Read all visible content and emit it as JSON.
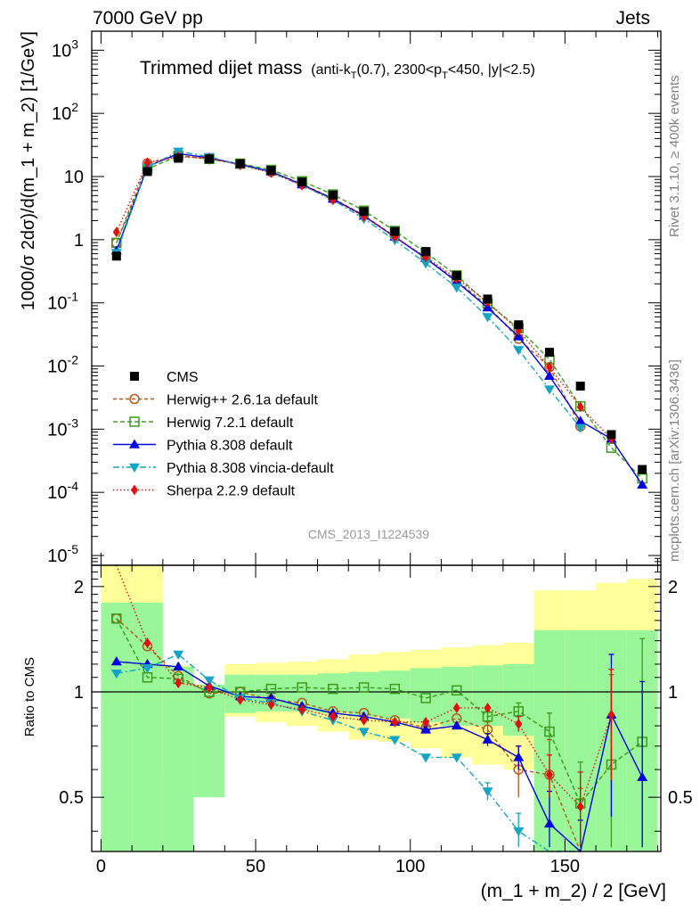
{
  "header": {
    "left": "7000 GeV pp",
    "right": "Jets",
    "side_top": "Rivet 3.1.10, ≥ 400k events",
    "side_bottom": "mcplots.cern.ch [arXiv:1306.3436]",
    "watermark": "CMS_2013_I1224539"
  },
  "chart_data": {
    "type": "line",
    "title": "Trimmed dijet mass",
    "subtitle_parts": [
      "(anti-k",
      "T",
      "(0.7), 2300<p",
      "T",
      "<450, |y|<2.5)"
    ],
    "xlabel": "(m_1 + m_2) / 2 [GeV]",
    "ylabel": "1000/σ 2dσ)/d(m_1 + m_2) [1/GeV]",
    "ratio_ylabel": "Ratio to CMS",
    "xlim": [
      -3,
      181
    ],
    "ylim": [
      7e-06,
      2000
    ],
    "ratio_ylim": [
      0.35,
      2.3
    ],
    "yscale": "log",
    "x_ticks": [
      0,
      50,
      100,
      150
    ],
    "y_ticks": [
      {
        "exp": "-5",
        "v": 1e-05
      },
      {
        "exp": "-4",
        "v": 0.0001
      },
      {
        "exp": "-3",
        "v": 0.001
      },
      {
        "exp": "-2",
        "v": 0.01
      },
      {
        "exp": "-1",
        "v": 0.1
      },
      {
        "text": "1",
        "v": 1
      },
      {
        "text": "10",
        "v": 10
      },
      {
        "exp": "2",
        "v": 100
      },
      {
        "exp": "3",
        "v": 1000
      }
    ],
    "ratio_ticks": [
      0.5,
      1,
      2
    ],
    "x": [
      5,
      15,
      25,
      35,
      45,
      55,
      65,
      75,
      85,
      95,
      105,
      115,
      125,
      135,
      145,
      155,
      165,
      175
    ],
    "data": {
      "name": "CMS",
      "values": [
        0.55,
        12,
        19.5,
        19,
        16,
        12.5,
        8.2,
        5.1,
        2.8,
        1.35,
        0.65,
        0.27,
        0.115,
        0.045,
        0.0165,
        0.0048,
        0.00082,
        0.00023
      ]
    },
    "band": {
      "green_lo": [
        0.3,
        0.3,
        0.3,
        0.5,
        0.87,
        0.88,
        0.88,
        0.87,
        0.85,
        0.84,
        0.82,
        0.8,
        0.8,
        0.75,
        0.3,
        0.3,
        0.3,
        0.3
      ],
      "green_hi": [
        1.8,
        1.8,
        1.18,
        1.05,
        1.12,
        1.12,
        1.12,
        1.13,
        1.14,
        1.15,
        1.17,
        1.18,
        1.19,
        1.2,
        1.5,
        1.5,
        1.5,
        1.5
      ],
      "yellow_lo": [
        0.3,
        0.3,
        0.6,
        0.72,
        0.85,
        0.82,
        0.8,
        0.77,
        0.73,
        0.72,
        0.69,
        0.65,
        0.62,
        0.6,
        0.3,
        0.3,
        0.3,
        0.3
      ],
      "yellow_hi": [
        2.3,
        2.3,
        1.19,
        1.05,
        1.2,
        1.21,
        1.22,
        1.24,
        1.28,
        1.3,
        1.32,
        1.34,
        1.36,
        1.38,
        1.95,
        1.95,
        2.05,
        2.1
      ]
    },
    "series": [
      {
        "name": "Herwig++ 2.6.1a default",
        "color": "#b3591b",
        "dash": "4,3",
        "marker": "circle",
        "ratio": [
          1.62,
          1.35,
          1.11,
          0.99,
          1.0,
          0.95,
          0.93,
          0.88,
          0.87,
          0.83,
          0.79,
          0.84,
          0.78,
          0.6,
          0.58,
          0.23,
          null,
          null
        ],
        "ratio_err": [
          0,
          0.02,
          0,
          0,
          0,
          0,
          0,
          0,
          0,
          0,
          0,
          0,
          0.04,
          0.1,
          0.15,
          0.3,
          0,
          0
        ]
      },
      {
        "name": "Herwig 7.2.1 default",
        "color": "#3c9b1c",
        "dash": "5,3",
        "marker": "square",
        "ratio": [
          1.62,
          1.1,
          1.09,
          1.0,
          1.0,
          1.02,
          1.03,
          1.02,
          1.03,
          1.02,
          0.96,
          1.01,
          0.85,
          0.88,
          0.77,
          0.48,
          0.62,
          0.72
        ],
        "ratio_err": [
          0,
          0,
          0,
          0,
          0,
          0,
          0,
          0,
          0,
          0,
          0,
          0,
          0.03,
          0.05,
          0.1,
          0.15,
          0.5,
          0.7
        ]
      },
      {
        "name": "Pythia 8.308 default",
        "color": "#0000e0",
        "dash": "",
        "marker": "triangle-up",
        "ratio": [
          1.22,
          1.2,
          1.18,
          1.04,
          0.97,
          0.96,
          0.91,
          0.87,
          0.85,
          0.82,
          0.78,
          0.8,
          0.73,
          0.65,
          0.42,
          0.28,
          0.86,
          0.57
        ],
        "ratio_err": [
          0,
          0,
          0,
          0,
          0,
          0,
          0,
          0,
          0,
          0,
          0.02,
          0,
          0.03,
          0.05,
          0.1,
          0.15,
          0.42,
          0.5
        ]
      },
      {
        "name": "Pythia 8.308 vincia-default",
        "color": "#14a4c4",
        "dash": "7,3,2,3",
        "marker": "triangle-down",
        "ratio": [
          1.13,
          1.17,
          1.28,
          1.08,
          0.96,
          0.93,
          0.88,
          0.83,
          0.77,
          0.73,
          0.65,
          0.65,
          0.52,
          0.4,
          0.26,
          0.22,
          null,
          null
        ],
        "ratio_err": [
          0,
          0,
          0,
          0,
          0,
          0,
          0,
          0,
          0,
          0,
          0,
          0,
          0.03,
          0.05,
          0,
          0,
          0,
          0
        ]
      },
      {
        "name": "Sherpa 2.2.9 default",
        "color": "#e01010",
        "dash": "1.5,2.5",
        "marker": "diamond",
        "ratio": [
          2.4,
          1.38,
          1.06,
          1.03,
          0.95,
          0.92,
          0.89,
          0.85,
          0.83,
          0.82,
          0.82,
          0.9,
          0.9,
          0.81,
          0.58,
          0.47,
          0.86,
          null
        ],
        "ratio_err": [
          0,
          0,
          0,
          0,
          0,
          0,
          0,
          0,
          0,
          0,
          0,
          0,
          0,
          0.04,
          0.08,
          0.12,
          0.3,
          0
        ]
      }
    ],
    "legend_position": "lower-left"
  }
}
